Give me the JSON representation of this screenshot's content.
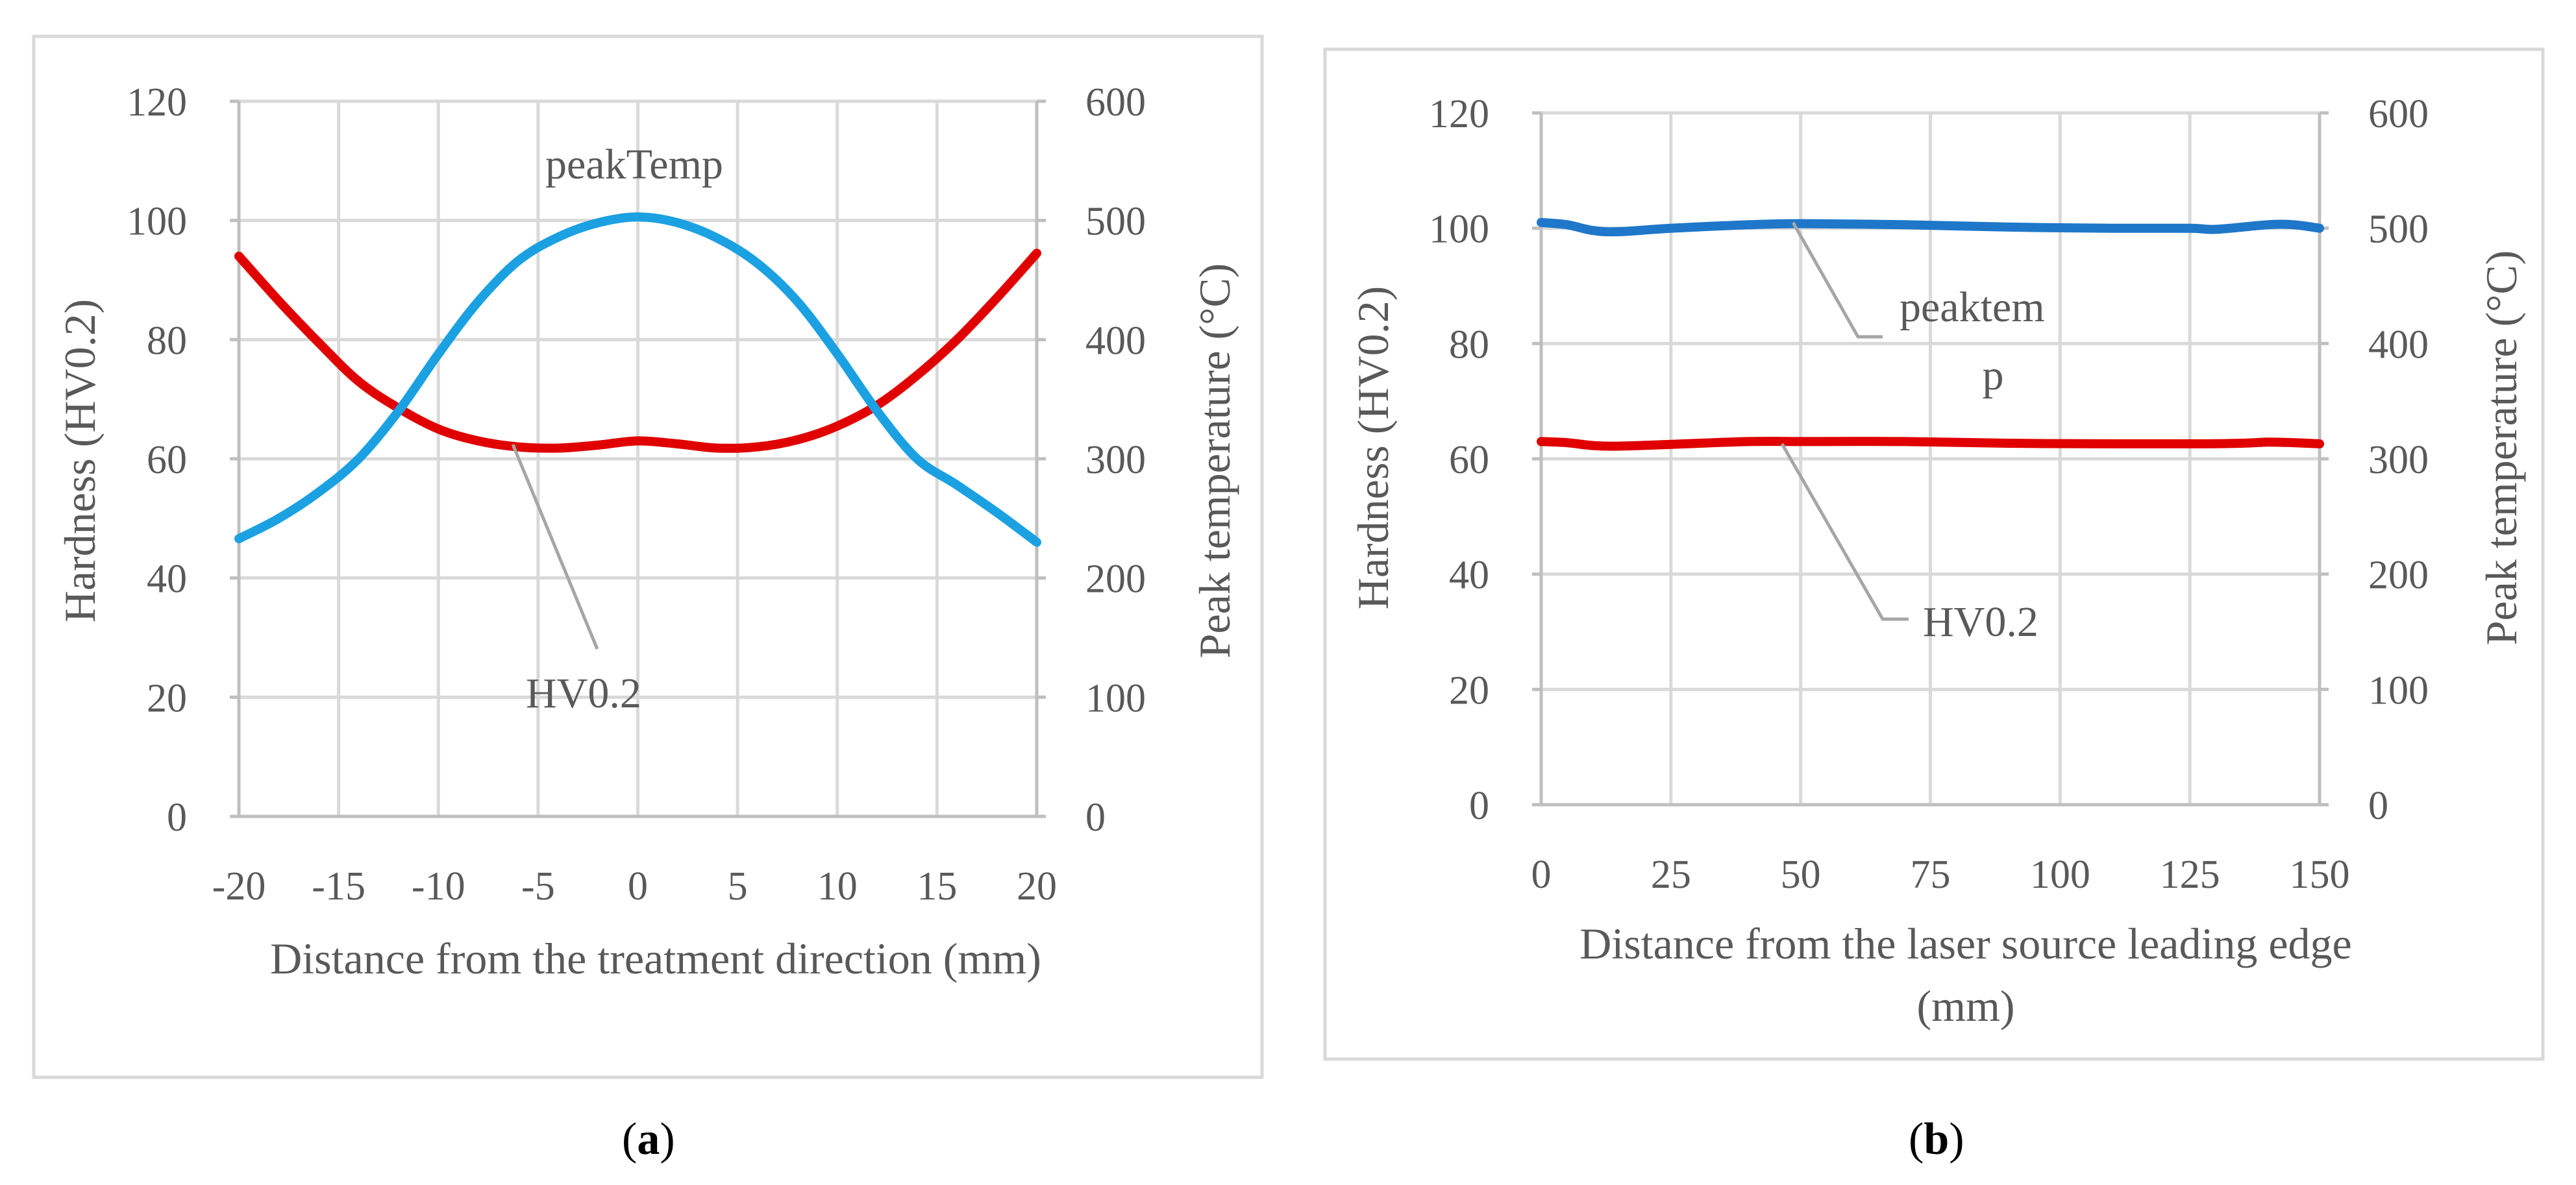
{
  "chart_data": [
    {
      "type": "line",
      "panel": "a",
      "caption_label": "a",
      "xlabel": "Distance from the treatment direction (mm)",
      "ylabel": "Hardness (HV0.2)",
      "y2label": "Peak temperature (°C)",
      "xlim": [
        -20,
        20
      ],
      "ylim": [
        0,
        120
      ],
      "y2lim": [
        0,
        600
      ],
      "xticks": [
        "-20",
        "-15",
        "-10",
        "-5",
        "0",
        "5",
        "10",
        "15",
        "20"
      ],
      "xtick_values": [
        -20,
        -15,
        -10,
        -5,
        0,
        5,
        10,
        15,
        20
      ],
      "yticks": [
        "0",
        "20",
        "40",
        "60",
        "80",
        "100",
        "120"
      ],
      "y2ticks": [
        "0",
        "100",
        "200",
        "300",
        "400",
        "500",
        "600"
      ],
      "series": [
        {
          "name": "HV0.2",
          "axis": "left",
          "color": "#e00000",
          "x": [
            -20,
            -18,
            -16,
            -14,
            -12,
            -10,
            -8,
            -6,
            -4,
            -2,
            0,
            2,
            4,
            6,
            8,
            10,
            12,
            14,
            16,
            18,
            20
          ],
          "values": [
            94,
            86.5,
            79.5,
            73,
            68.5,
            65,
            63,
            62,
            61.8,
            62.3,
            63,
            62.5,
            61.8,
            62,
            63.2,
            65.5,
            69,
            74,
            80,
            87,
            94.5
          ]
        },
        {
          "name": "peakTemp",
          "axis": "right",
          "color": "#1ba1e2",
          "x": [
            -20,
            -18,
            -16,
            -14,
            -12,
            -10,
            -8,
            -6,
            -4,
            -2,
            0,
            2,
            4,
            6,
            8,
            10,
            12,
            14,
            16,
            18,
            20
          ],
          "values": [
            233,
            250,
            272,
            300,
            340,
            388,
            432,
            466,
            486,
            498,
            503,
            498,
            485,
            464,
            432,
            388,
            340,
            300,
            278,
            255,
            230
          ]
        }
      ],
      "annotations": [
        {
          "text": "peakTemp",
          "series": "peakTemp"
        },
        {
          "text": "HV0.2",
          "series": "HV0.2",
          "leader": true
        }
      ]
    },
    {
      "type": "line",
      "panel": "b",
      "caption_label": "b",
      "xlabel_lines": [
        "Distance from the laser source leading edge",
        "(mm)"
      ],
      "ylabel": "Hardness (HV0.2)",
      "y2label": "Peak temperature (°C)",
      "xlim": [
        0,
        150
      ],
      "ylim": [
        0,
        120
      ],
      "y2lim": [
        0,
        600
      ],
      "xticks": [
        "0",
        "25",
        "50",
        "75",
        "100",
        "125",
        "150"
      ],
      "xtick_values": [
        0,
        25,
        50,
        75,
        100,
        125,
        150
      ],
      "yticks": [
        "0",
        "20",
        "40",
        "60",
        "80",
        "100",
        "120"
      ],
      "y2ticks": [
        "0",
        "100",
        "200",
        "300",
        "400",
        "500",
        "600"
      ],
      "series": [
        {
          "name": "HV0.2",
          "axis": "left",
          "color": "#e00000",
          "x": [
            0,
            5,
            10,
            15,
            25,
            40,
            50,
            70,
            90,
            110,
            125,
            135,
            140,
            145,
            150
          ],
          "values": [
            63,
            62.8,
            62.3,
            62.2,
            62.5,
            63,
            63,
            63,
            62.7,
            62.6,
            62.6,
            62.7,
            62.9,
            62.8,
            62.6
          ]
        },
        {
          "name": "peaktemp",
          "axis": "right",
          "color": "#1f77c9",
          "x": [
            0,
            5,
            10,
            15,
            25,
            40,
            50,
            70,
            90,
            110,
            125,
            130,
            140,
            145,
            150
          ],
          "values": [
            505,
            503,
            498,
            497,
            500,
            503,
            504,
            503,
            501,
            500,
            500,
            499,
            503,
            503,
            500
          ]
        }
      ],
      "annotations": [
        {
          "text_lines": [
            "peaktem",
            "p"
          ],
          "series": "peaktemp",
          "leader": true
        },
        {
          "text": "HV0.2",
          "series": "HV0.2",
          "leader": true
        }
      ]
    }
  ]
}
